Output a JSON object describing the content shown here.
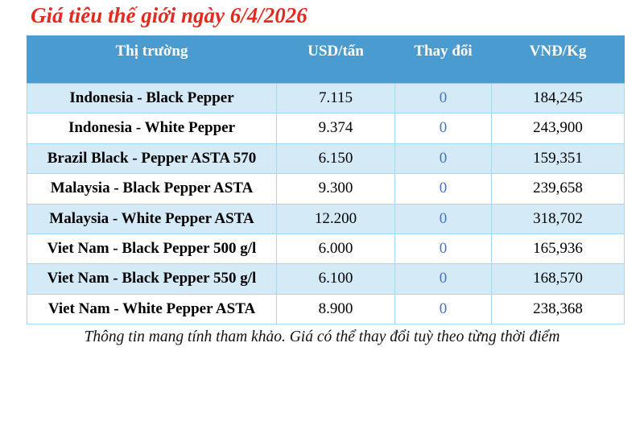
{
  "chart_data": {
    "type": "table",
    "title": "Giá tiêu thế giới ngày 6/4/2026",
    "columns": [
      "Thị trường",
      "USD/tấn",
      "Thay đổi",
      "VNĐ/Kg"
    ],
    "rows": [
      [
        "Indonesia - Black Pepper",
        "7.115",
        "0",
        "184,245"
      ],
      [
        "Indonesia - White Pepper",
        "9.374",
        "0",
        "243,900"
      ],
      [
        "Brazil Black - Pepper ASTA 570",
        "6.150",
        "0",
        "159,351"
      ],
      [
        "Malaysia - Black Pepper ASTA",
        "9.300",
        "0",
        "239,658"
      ],
      [
        "Malaysia - White Pepper ASTA",
        "12.200",
        "0",
        "318,702"
      ],
      [
        "Viet Nam - Black Pepper 500 g/l",
        "6.000",
        "0",
        "165,936"
      ],
      [
        "Viet Nam - Black Pepper 550 g/l",
        "6.100",
        "0",
        "168,570"
      ],
      [
        "Viet Nam - White Pepper ASTA",
        "8.900",
        "0",
        "238,368"
      ]
    ],
    "footnote": "Thông tin mang tính tham khảo. Giá có thể thay đổi tuỳ theo từng thời điểm",
    "layout": {
      "grid": "on",
      "zebra_striping": true,
      "header_position": "top"
    }
  },
  "colors": {
    "title_red": "#e12b21",
    "header_bg": "#4a9bd0",
    "header_text": "#ffffff",
    "row_alt_bg": "#d5eaf7",
    "row_plain_bg": "#ffffff",
    "cell_border": "#a5d7f0",
    "change_value_blue": "#4472c4",
    "body_text": "#000000"
  }
}
